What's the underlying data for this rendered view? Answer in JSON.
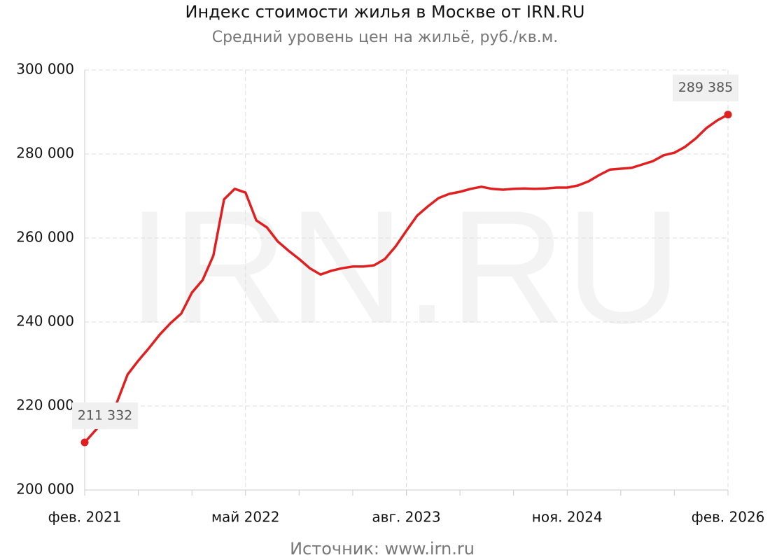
{
  "chart_data": {
    "type": "line",
    "title": "Индекс стоимости жилья в Москве от IRN.RU",
    "subtitle": "Средний уровень цен на жильё, руб./кв.м.",
    "watermark": "IRN.RU",
    "source": "Источник: www.irn.ru",
    "categories": [
      "фев. 2021",
      null,
      null,
      null,
      null,
      null,
      null,
      null,
      null,
      null,
      null,
      null,
      null,
      null,
      null,
      "май 2022",
      null,
      null,
      null,
      null,
      null,
      null,
      null,
      null,
      null,
      null,
      null,
      null,
      null,
      null,
      "авг. 2023",
      null,
      null,
      null,
      null,
      null,
      null,
      null,
      null,
      null,
      null,
      null,
      null,
      null,
      null,
      "ноя. 2024",
      null,
      null,
      null,
      null,
      null,
      null,
      null,
      null,
      null,
      null,
      null,
      null,
      null,
      null,
      "фев. 2026"
    ],
    "values": [
      211332,
      214200,
      217000,
      220800,
      227500,
      230800,
      233800,
      237000,
      239700,
      242000,
      247000,
      250000,
      255800,
      269200,
      271700,
      270800,
      264200,
      262500,
      259200,
      257000,
      255000,
      252800,
      251300,
      252200,
      252800,
      253200,
      253200,
      253500,
      255000,
      258000,
      261700,
      265300,
      267500,
      269500,
      270500,
      271000,
      271700,
      272200,
      271700,
      271500,
      271700,
      271800,
      271700,
      271800,
      272000,
      272000,
      272500,
      273500,
      275000,
      276300,
      276500,
      276700,
      277500,
      278300,
      279700,
      280300,
      281700,
      283700,
      286200,
      288000,
      289385
    ],
    "value_labels": [
      "211 332",
      null,
      null,
      null,
      null,
      null,
      null,
      null,
      null,
      null,
      null,
      null,
      null,
      null,
      null,
      null,
      null,
      null,
      null,
      null,
      null,
      null,
      null,
      null,
      null,
      null,
      null,
      null,
      null,
      null,
      null,
      null,
      null,
      null,
      null,
      null,
      null,
      null,
      null,
      null,
      null,
      null,
      null,
      null,
      null,
      null,
      null,
      null,
      null,
      null,
      null,
      null,
      null,
      null,
      null,
      null,
      null,
      null,
      null,
      null,
      "289 385"
    ],
    "color": "#e02020",
    "ylim": [
      200000,
      300000
    ],
    "yticks": [
      {
        "value": 200000,
        "label": "200 000"
      },
      {
        "value": 220000,
        "label": "220 000"
      },
      {
        "value": 240000,
        "label": "240 000"
      },
      {
        "value": 260000,
        "label": "260 000"
      },
      {
        "value": 280000,
        "label": "280 000"
      },
      {
        "value": 300000,
        "label": "300 000"
      }
    ],
    "grid": true
  }
}
